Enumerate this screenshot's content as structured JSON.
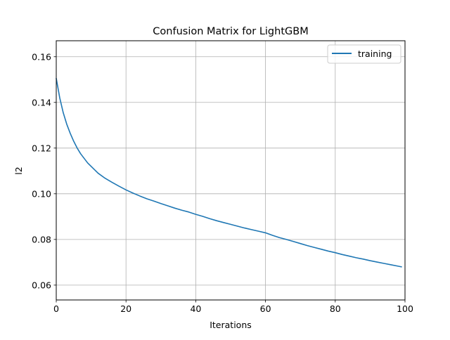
{
  "chart_data": {
    "type": "line",
    "title": "Confusion Matrix for LightGBM",
    "xlabel": "Iterations",
    "ylabel": "l2",
    "xlim": [
      0,
      100
    ],
    "ylim": [
      0.0535,
      0.167
    ],
    "grid": true,
    "legend_position": "top-right",
    "xticks": [
      0,
      20,
      40,
      60,
      80,
      100
    ],
    "xtick_labels": [
      "0",
      "20",
      "40",
      "60",
      "80",
      "100"
    ],
    "yticks": [
      0.06,
      0.08,
      0.1,
      0.12,
      0.14,
      0.16
    ],
    "ytick_labels": [
      "0.06",
      "0.08",
      "0.10",
      "0.12",
      "0.14",
      "0.16"
    ],
    "series": [
      {
        "name": "training",
        "color": "#1f77b4",
        "x": [
          0,
          1,
          2,
          3,
          4,
          5,
          6,
          7,
          8,
          9,
          10,
          12,
          14,
          16,
          18,
          20,
          22,
          24,
          26,
          28,
          30,
          32,
          34,
          36,
          38,
          40,
          42,
          44,
          46,
          48,
          50,
          52,
          54,
          56,
          58,
          60,
          62,
          64,
          66,
          68,
          70,
          72,
          74,
          76,
          78,
          80,
          82,
          84,
          86,
          88,
          90,
          92,
          94,
          96,
          98,
          99
        ],
        "y": [
          0.1505,
          0.142,
          0.1355,
          0.1305,
          0.1265,
          0.123,
          0.12,
          0.1175,
          0.1155,
          0.1135,
          0.112,
          0.109,
          0.1068,
          0.105,
          0.1033,
          0.1017,
          0.1003,
          0.099,
          0.0978,
          0.0968,
          0.0957,
          0.0947,
          0.0937,
          0.0928,
          0.092,
          0.091,
          0.0901,
          0.0891,
          0.0882,
          0.0874,
          0.0866,
          0.0858,
          0.085,
          0.0843,
          0.0836,
          0.0829,
          0.0818,
          0.0808,
          0.08,
          0.0791,
          0.0782,
          0.0773,
          0.0765,
          0.0757,
          0.0749,
          0.0742,
          0.0734,
          0.0727,
          0.072,
          0.0714,
          0.0707,
          0.0701,
          0.0695,
          0.0689,
          0.0683,
          0.068
        ]
      }
    ]
  }
}
